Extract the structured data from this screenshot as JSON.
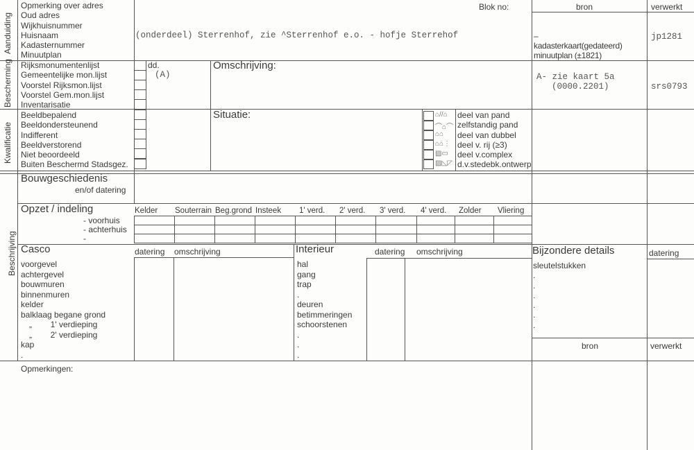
{
  "sections": {
    "aanduiding": "Aanduiding",
    "bescherming": "Bescherming",
    "kwalificatie": "Kwalificatie",
    "beschrijving": "Beschrijving"
  },
  "aanduiding_labels": [
    "Opmerking over adres",
    "Oud adres",
    "Wijkhuisnummer",
    "Huisnaam",
    "Kadasternummer",
    "Minuutplan"
  ],
  "aanduiding_value": "(onderdeel) Sterrenhof, zie ^Sterrenhof  e.o. - hofje Sterrehof",
  "blok_no_label": "Blok no:",
  "header": {
    "bron": "bron",
    "verwerkt": "verwerkt"
  },
  "aanduiding_bron": {
    "dash": "–",
    "line1": "kadasterkaart(gedateerd)",
    "line2": "minuutplan (±1821)"
  },
  "aanduiding_verwerkt": "jp1281",
  "bescherming_labels": [
    "Rijksmonumentenlijst",
    "Gemeentelijke mon.lijst",
    "Voorstel Rijksmon.lijst",
    "Voorstel Gem.mon.lijst",
    "Inventarisatie"
  ],
  "dd_label": "dd.",
  "dd_value": "(A)",
  "omschrijving_label": "Omschrijving:",
  "bescherming_bron": {
    "line1": "A- zie kaart 5a",
    "line2": "(0000.2201)"
  },
  "bescherming_verwerkt": "srs0793",
  "kwalificatie_labels": [
    "Beeldbepalend",
    "Beeldondersteunend",
    "Indifferent",
    "Beeldverstorend",
    "Niet  beoordeeld",
    "Buiten Beschermd Stadsgez."
  ],
  "situatie_label": "Situatie:",
  "situatie_options": [
    "deel van pand",
    "zelfstandig pand",
    "deel van dubbel",
    "deel v. rij  (≥3)",
    "deel v.complex",
    "d.v.stedebk.ontwerp"
  ],
  "bouwgeschiedenis": {
    "title": "Bouwgeschiedenis",
    "sub": "en/of datering"
  },
  "opzet": {
    "title": "Opzet / indeling",
    "rows": [
      "- voorhuis",
      "- achterhuis",
      "-"
    ],
    "columns": [
      "Kelder",
      "Souterrain",
      "Beg.grond",
      "Insteek",
      "1' verd.",
      "2' verd.",
      "3' verd.",
      "4' verd.",
      "Zolder",
      "Vliering"
    ]
  },
  "casco": {
    "title": "Casco",
    "datering": "datering",
    "omschrijving": "omschrijving",
    "items": [
      "voorgevel",
      "achtergevel",
      "bouwmuren",
      "binnenmuren",
      "kelder",
      "balklaag begane grond",
      "„        1' verdieping",
      "„        2' verdieping",
      "kap",
      "."
    ]
  },
  "interieur": {
    "title": "Interieur",
    "datering": "datering",
    "omschrijving": "omschrijving",
    "items": [
      "hal",
      "gang",
      "trap",
      ".",
      "deuren",
      "betimmeringen",
      "schoorstenen",
      ".",
      ".",
      "."
    ]
  },
  "bijzondere": {
    "title": "Bijzondere details",
    "datering": "datering",
    "items": [
      "sleutelstukken",
      ".",
      ".",
      ".",
      ".",
      ".",
      "."
    ],
    "bron": "bron",
    "verwerkt": "verwerkt"
  },
  "opmerkingen_label": "Opmerkingen:"
}
